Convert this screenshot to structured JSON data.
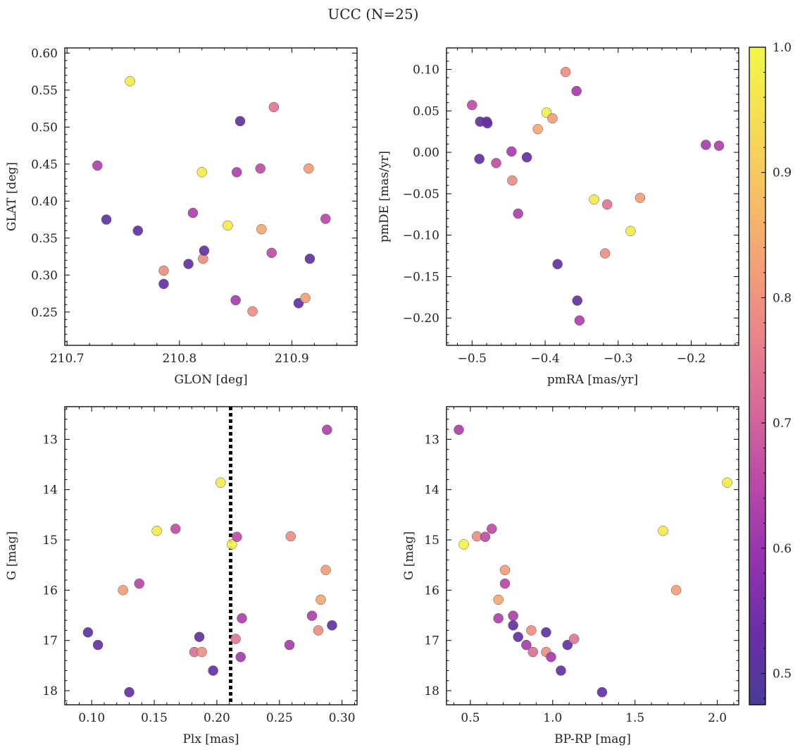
{
  "figure": {
    "title": "UCC (N=25)"
  },
  "colorbar": {
    "min": 0.475,
    "max": 1.0,
    "ticks": [
      "0.5",
      "0.6",
      "0.7",
      "0.8",
      "0.9",
      "1.0"
    ],
    "colormap": "plasma",
    "colors": [
      "#4a3b97",
      "#6a2fa6",
      "#9433b0",
      "#b948a7",
      "#d4679a",
      "#e8838a",
      "#f3a076",
      "#f8c063",
      "#f6de52",
      "#f1f747"
    ]
  },
  "chart_data": [
    {
      "type": "scatter",
      "xlabel": "GLON [deg]",
      "ylabel": "GLAT [deg]",
      "xlim": [
        210.698,
        210.958
      ],
      "ylim": [
        0.205,
        0.607
      ],
      "y_inverted": false,
      "xticks": [
        "210.7",
        "210.8",
        "210.9"
      ],
      "yticks": [
        "0.25",
        "0.30",
        "0.35",
        "0.40",
        "0.45",
        "0.50",
        "0.55",
        "0.60"
      ],
      "x": [
        210.727,
        210.735,
        210.756,
        210.763,
        210.786,
        210.786,
        210.808,
        210.812,
        210.82,
        210.821,
        210.822,
        210.843,
        210.85,
        210.851,
        210.854,
        210.865,
        210.872,
        210.873,
        210.882,
        210.884,
        210.906,
        210.912,
        210.915,
        210.916,
        210.93
      ],
      "y": [
        0.448,
        0.375,
        0.562,
        0.36,
        0.306,
        0.288,
        0.315,
        0.384,
        0.439,
        0.322,
        0.333,
        0.367,
        0.266,
        0.439,
        0.508,
        0.251,
        0.444,
        0.362,
        0.33,
        0.527,
        0.262,
        0.269,
        0.444,
        0.322,
        0.376
      ]
    },
    {
      "type": "scatter",
      "xlabel": "pmRA [mas/yr]",
      "ylabel": "pmDE [mas/yr]",
      "xlim": [
        -0.535,
        -0.135
      ],
      "ylim": [
        -0.233,
        0.126
      ],
      "y_inverted": false,
      "xticks": [
        "−0.5",
        "−0.4",
        "−0.3",
        "−0.2"
      ],
      "yticks": [
        "−0.20",
        "−0.15",
        "−0.10",
        "−0.05",
        "0.00",
        "0.05",
        "0.10"
      ],
      "x": [
        -0.5,
        -0.489,
        -0.49,
        -0.48,
        -0.479,
        -0.467,
        -0.446,
        -0.445,
        -0.437,
        -0.425,
        -0.41,
        -0.398,
        -0.39,
        -0.383,
        -0.372,
        -0.357,
        -0.356,
        -0.353,
        -0.333,
        -0.318,
        -0.315,
        -0.283,
        -0.27,
        -0.18,
        -0.162
      ],
      "y": [
        0.057,
        0.037,
        -0.008,
        0.037,
        0.035,
        -0.013,
        0.001,
        -0.034,
        -0.074,
        -0.006,
        0.028,
        0.048,
        0.041,
        -0.135,
        0.097,
        0.074,
        -0.179,
        -0.203,
        -0.057,
        -0.122,
        -0.063,
        -0.095,
        -0.055,
        0.009,
        0.008
      ]
    },
    {
      "type": "scatter",
      "xlabel": "Plx [mas]",
      "ylabel": "G [mag]",
      "xlim": [
        0.0785,
        0.312
      ],
      "ylim": [
        18.28,
        12.35
      ],
      "y_inverted": true,
      "vline": 0.211,
      "xticks": [
        "0.10",
        "0.15",
        "0.20",
        "0.25",
        "0.30"
      ],
      "yticks": [
        "13",
        "14",
        "15",
        "16",
        "17",
        "18"
      ],
      "x": [
        0.097,
        0.105,
        0.125,
        0.13,
        0.138,
        0.152,
        0.167,
        0.182,
        0.186,
        0.188,
        0.197,
        0.203,
        0.212,
        0.215,
        0.216,
        0.219,
        0.22,
        0.258,
        0.259,
        0.276,
        0.281,
        0.283,
        0.287,
        0.288,
        0.292
      ],
      "y": [
        16.84,
        17.09,
        16.0,
        18.03,
        15.87,
        14.82,
        14.78,
        17.23,
        16.93,
        17.23,
        17.6,
        13.86,
        15.09,
        16.97,
        14.94,
        17.33,
        16.56,
        17.09,
        14.93,
        16.51,
        16.8,
        16.19,
        15.6,
        12.81,
        16.7
      ],
      "c": [
        0.51,
        0.52,
        0.82,
        0.52,
        0.65,
        0.97,
        0.66,
        0.73,
        0.52,
        0.79,
        0.52,
        0.97,
        0.99,
        0.74,
        0.66,
        0.62,
        0.63,
        0.62,
        0.79,
        0.63,
        0.79,
        0.84,
        0.82,
        0.63,
        0.52
      ]
    },
    {
      "type": "scatter",
      "xlabel": "BP-RP [mag]",
      "ylabel": "G [mag]",
      "xlim": [
        0.355,
        2.13
      ],
      "ylim": [
        18.28,
        12.35
      ],
      "y_inverted": true,
      "xticks": [
        "0.5",
        "1.0",
        "1.5",
        "2.0"
      ],
      "yticks": [
        "13",
        "14",
        "15",
        "16",
        "17",
        "18"
      ],
      "x": [
        0.43,
        0.46,
        0.54,
        0.59,
        0.63,
        0.67,
        0.67,
        0.71,
        0.71,
        0.76,
        0.76,
        0.79,
        0.84,
        0.87,
        0.88,
        0.96,
        0.96,
        0.99,
        1.05,
        1.09,
        1.13,
        1.3,
        1.67,
        1.75,
        2.06
      ],
      "y": [
        12.81,
        15.09,
        14.93,
        14.94,
        14.78,
        16.19,
        16.56,
        15.6,
        15.87,
        16.51,
        16.7,
        16.93,
        17.09,
        16.8,
        17.23,
        16.84,
        17.23,
        17.33,
        17.6,
        17.09,
        16.97,
        18.03,
        14.82,
        16.0,
        13.86
      ],
      "c": [
        0.63,
        0.99,
        0.79,
        0.66,
        0.66,
        0.84,
        0.63,
        0.82,
        0.65,
        0.63,
        0.52,
        0.52,
        0.62,
        0.79,
        0.73,
        0.51,
        0.79,
        0.62,
        0.52,
        0.52,
        0.74,
        0.52,
        0.97,
        0.82,
        0.97
      ]
    }
  ]
}
